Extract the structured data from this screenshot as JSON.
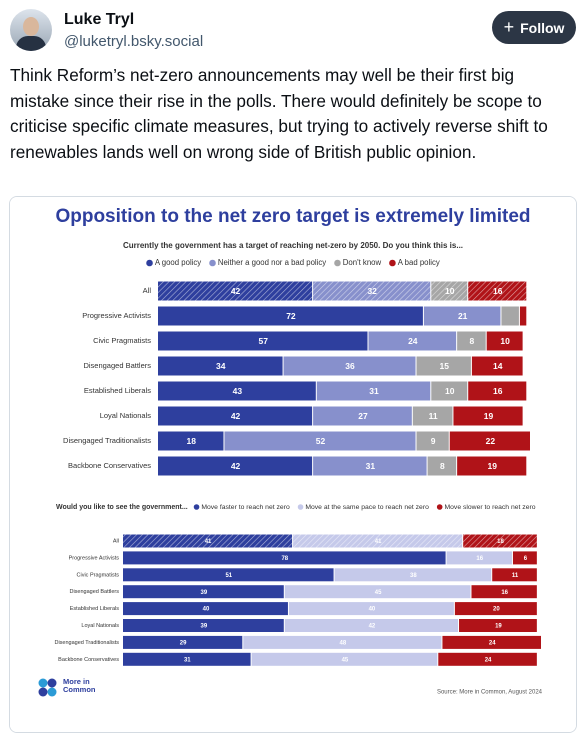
{
  "post": {
    "author": "Luke Tryl",
    "handle": "@luketryl.bsky.social",
    "follow": "Follow",
    "text": "Think Reform’s net-zero announcements may well be their first big mistake since their rise in the polls. There would definitely be scope to criticise specific climate measures, but trying to actively reverse shift to renewables lands well on wrong side of British public opinion."
  },
  "logo": "More in Common",
  "source": "Source: More in Common, August 2024",
  "chart_data": [
    {
      "type": "stacked-bar",
      "title": "Opposition to the net zero target is extremely limited",
      "subtitle": "Currently the government has a target of reaching net-zero by 2050. Do you think this is...",
      "hatch_first_row": true,
      "categories": [
        "All",
        "Progressive Activists",
        "Civic Pragmatists",
        "Disengaged Battlers",
        "Established Liberals",
        "Loyal Nationals",
        "Disengaged Traditionalists",
        "Backbone Conservatives"
      ],
      "series": [
        {
          "name": "A good policy",
          "color": "#2e3f9e",
          "values": [
            42,
            72,
            57,
            34,
            43,
            42,
            18,
            42
          ]
        },
        {
          "name": "Neither a good nor a bad policy",
          "color": "#8790cc",
          "values": [
            32,
            21,
            24,
            36,
            31,
            27,
            52,
            31
          ]
        },
        {
          "name": "Don't know",
          "color": "#a6a6a6",
          "values": [
            10,
            5,
            8,
            15,
            10,
            11,
            9,
            8
          ]
        },
        {
          "name": "A bad policy",
          "color": "#b01318",
          "values": [
            16,
            2,
            10,
            14,
            16,
            19,
            22,
            19
          ]
        }
      ]
    },
    {
      "type": "stacked-bar",
      "subtitle": "Would you like to see the government...",
      "hatch_first_row": true,
      "categories": [
        "All",
        "Progressive Activists",
        "Civic Pragmatists",
        "Disengaged Battlers",
        "Established Liberals",
        "Loyal Nationals",
        "Disengaged Traditionalists",
        "Backbone Conservatives"
      ],
      "series": [
        {
          "name": "Move faster to reach net zero",
          "color": "#2e3f9e",
          "values": [
            41,
            78,
            51,
            39,
            40,
            39,
            29,
            31
          ]
        },
        {
          "name": "Move at the same pace to reach net zero",
          "color": "#c5c9ea",
          "values": [
            41,
            16,
            38,
            45,
            40,
            42,
            48,
            45
          ]
        },
        {
          "name": "Move slower to reach net zero",
          "color": "#b01318",
          "values": [
            18,
            6,
            11,
            16,
            20,
            19,
            24,
            24
          ]
        }
      ]
    }
  ]
}
